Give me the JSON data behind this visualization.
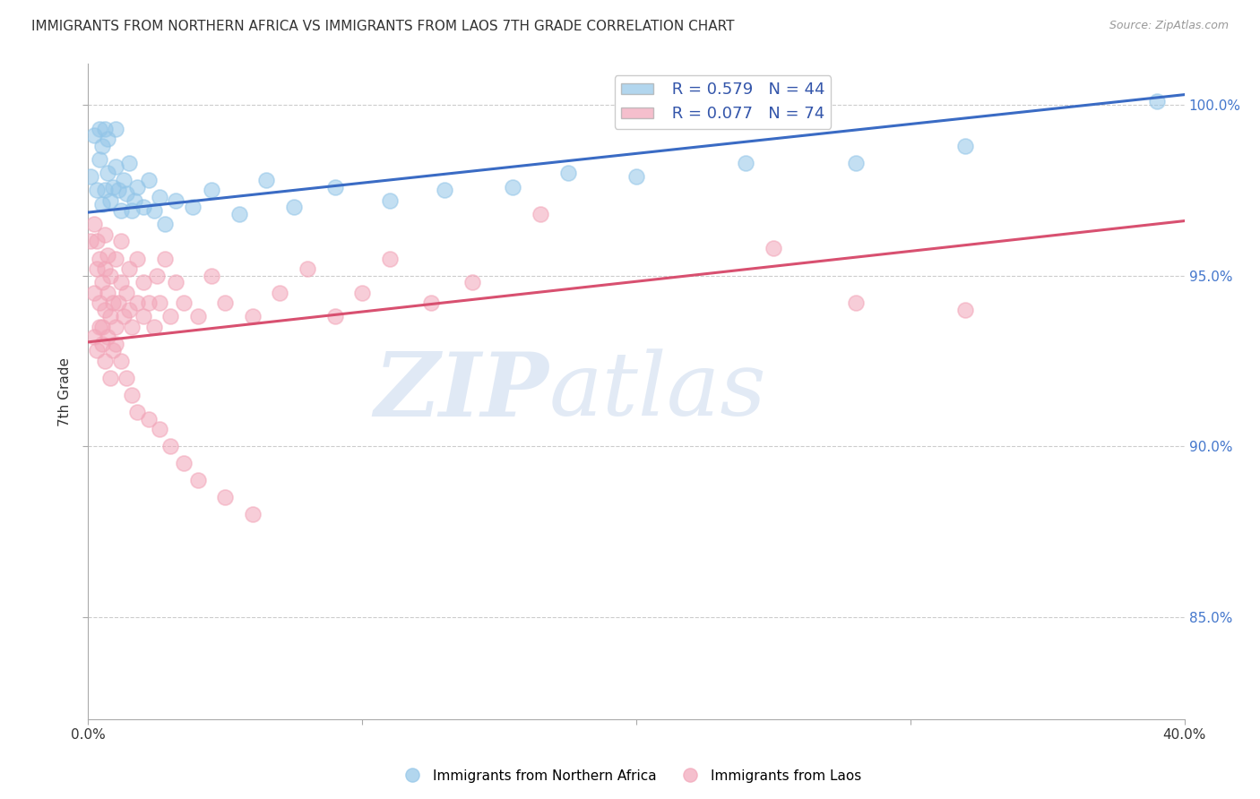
{
  "title": "IMMIGRANTS FROM NORTHERN AFRICA VS IMMIGRANTS FROM LAOS 7TH GRADE CORRELATION CHART",
  "source": "Source: ZipAtlas.com",
  "ylabel": "7th Grade",
  "xlim": [
    0.0,
    0.4
  ],
  "ylim": [
    0.82,
    1.012
  ],
  "yticks": [
    0.85,
    0.9,
    0.95,
    1.0
  ],
  "ytick_labels": [
    "85.0%",
    "90.0%",
    "95.0%",
    "100.0%"
  ],
  "legend_r_blue": "R = 0.579",
  "legend_n_blue": "N = 44",
  "legend_r_pink": "R = 0.077",
  "legend_n_pink": "N = 74",
  "blue_color": "#92C5E8",
  "pink_color": "#F2A5B8",
  "blue_line_color": "#3A6BC4",
  "pink_line_color": "#D85070",
  "watermark_zip": "ZIP",
  "watermark_atlas": "atlas",
  "blue_line_x": [
    0.0,
    0.4
  ],
  "blue_line_y": [
    0.9685,
    1.003
  ],
  "pink_line_x": [
    0.0,
    0.4
  ],
  "pink_line_y": [
    0.9305,
    0.966
  ],
  "blue_scatter_x": [
    0.001,
    0.002,
    0.003,
    0.004,
    0.004,
    0.005,
    0.005,
    0.006,
    0.006,
    0.007,
    0.007,
    0.008,
    0.009,
    0.01,
    0.01,
    0.011,
    0.012,
    0.013,
    0.014,
    0.015,
    0.016,
    0.017,
    0.018,
    0.02,
    0.022,
    0.024,
    0.026,
    0.028,
    0.032,
    0.038,
    0.045,
    0.055,
    0.065,
    0.075,
    0.09,
    0.11,
    0.13,
    0.155,
    0.175,
    0.2,
    0.24,
    0.28,
    0.32,
    0.39
  ],
  "blue_scatter_y": [
    0.979,
    0.991,
    0.975,
    0.984,
    0.993,
    0.971,
    0.988,
    0.975,
    0.993,
    0.98,
    0.99,
    0.972,
    0.976,
    0.982,
    0.993,
    0.975,
    0.969,
    0.978,
    0.974,
    0.983,
    0.969,
    0.972,
    0.976,
    0.97,
    0.978,
    0.969,
    0.973,
    0.965,
    0.972,
    0.97,
    0.975,
    0.968,
    0.978,
    0.97,
    0.976,
    0.972,
    0.975,
    0.976,
    0.98,
    0.979,
    0.983,
    0.983,
    0.988,
    1.001
  ],
  "pink_scatter_x": [
    0.001,
    0.002,
    0.002,
    0.003,
    0.003,
    0.004,
    0.004,
    0.005,
    0.005,
    0.006,
    0.006,
    0.006,
    0.007,
    0.007,
    0.008,
    0.008,
    0.009,
    0.01,
    0.01,
    0.011,
    0.012,
    0.012,
    0.013,
    0.014,
    0.015,
    0.015,
    0.016,
    0.018,
    0.018,
    0.02,
    0.02,
    0.022,
    0.024,
    0.025,
    0.026,
    0.028,
    0.03,
    0.032,
    0.035,
    0.04,
    0.045,
    0.05,
    0.06,
    0.07,
    0.08,
    0.09,
    0.1,
    0.11,
    0.125,
    0.14,
    0.002,
    0.003,
    0.004,
    0.005,
    0.006,
    0.007,
    0.008,
    0.009,
    0.01,
    0.012,
    0.014,
    0.016,
    0.018,
    0.022,
    0.026,
    0.03,
    0.035,
    0.04,
    0.05,
    0.06,
    0.25,
    0.28,
    0.165,
    0.32
  ],
  "pink_scatter_y": [
    0.96,
    0.945,
    0.965,
    0.952,
    0.96,
    0.942,
    0.955,
    0.935,
    0.948,
    0.94,
    0.952,
    0.962,
    0.945,
    0.956,
    0.938,
    0.95,
    0.942,
    0.935,
    0.955,
    0.942,
    0.948,
    0.96,
    0.938,
    0.945,
    0.94,
    0.952,
    0.935,
    0.942,
    0.955,
    0.938,
    0.948,
    0.942,
    0.935,
    0.95,
    0.942,
    0.955,
    0.938,
    0.948,
    0.942,
    0.938,
    0.95,
    0.942,
    0.938,
    0.945,
    0.952,
    0.938,
    0.945,
    0.955,
    0.942,
    0.948,
    0.932,
    0.928,
    0.935,
    0.93,
    0.925,
    0.932,
    0.92,
    0.928,
    0.93,
    0.925,
    0.92,
    0.915,
    0.91,
    0.908,
    0.905,
    0.9,
    0.895,
    0.89,
    0.885,
    0.88,
    0.958,
    0.942,
    0.968,
    0.94
  ]
}
